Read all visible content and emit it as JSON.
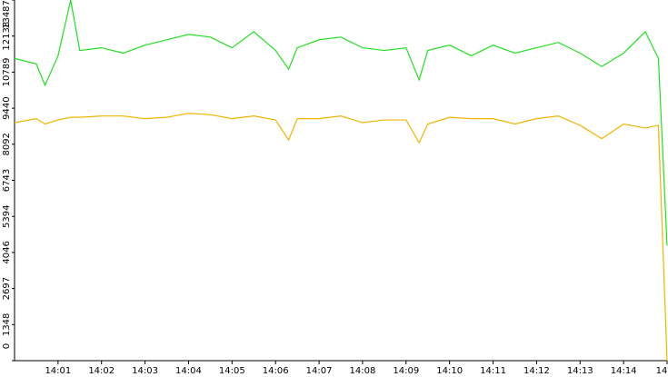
{
  "chart_data": {
    "type": "line",
    "x": [
      0,
      0.5,
      0.7,
      1.0,
      1.29,
      1.5,
      2.0,
      2.5,
      3.0,
      3.5,
      4.0,
      4.5,
      5.0,
      5.5,
      6.0,
      6.3,
      6.5,
      7.0,
      7.5,
      8.0,
      8.5,
      9.0,
      9.3,
      9.5,
      10.0,
      10.5,
      11.0,
      11.5,
      12.0,
      12.5,
      13.0,
      13.5,
      14.0,
      14.5,
      14.8,
      15.0
    ],
    "series": [
      {
        "color": "#22e022",
        "values": [
          11300,
          11100,
          10300,
          11400,
          13487,
          11600,
          11700,
          11500,
          11800,
          12000,
          12200,
          12100,
          11700,
          12300,
          11600,
          10900,
          11700,
          12000,
          12100,
          11700,
          11600,
          11700,
          10500,
          11600,
          11800,
          11400,
          11800,
          11500,
          11700,
          11900,
          11500,
          11000,
          11500,
          12300,
          11300,
          4300
        ]
      },
      {
        "color": "#f0b400",
        "values": [
          8900,
          9050,
          8850,
          9000,
          9100,
          9100,
          9150,
          9150,
          9050,
          9100,
          9250,
          9200,
          9050,
          9150,
          9000,
          8250,
          9050,
          9050,
          9150,
          8900,
          9000,
          9000,
          8150,
          8850,
          9100,
          9050,
          9050,
          8850,
          9050,
          9150,
          8800,
          8300,
          8850,
          8700,
          8800,
          0
        ]
      }
    ],
    "xlim": [
      0,
      15
    ],
    "xticks": [
      {
        "value": 1,
        "label": "14:01"
      },
      {
        "value": 2,
        "label": "14:02"
      },
      {
        "value": 3,
        "label": "14:03"
      },
      {
        "value": 4,
        "label": "14:04"
      },
      {
        "value": 5,
        "label": "14:05"
      },
      {
        "value": 6,
        "label": "14:06"
      },
      {
        "value": 7,
        "label": "14:07"
      },
      {
        "value": 8,
        "label": "14:08"
      },
      {
        "value": 9,
        "label": "14:09"
      },
      {
        "value": 10,
        "label": "14:10"
      },
      {
        "value": 11,
        "label": "14:11"
      },
      {
        "value": 12,
        "label": "14:12"
      },
      {
        "value": 13,
        "label": "14:13"
      },
      {
        "value": 14,
        "label": "14:14"
      },
      {
        "value": 15,
        "label": "14"
      }
    ],
    "ylim": [
      0,
      13487
    ],
    "yticks": [
      0,
      1348,
      2697,
      4046,
      5394,
      6743,
      8092,
      9440,
      10789,
      12138,
      13487
    ]
  }
}
